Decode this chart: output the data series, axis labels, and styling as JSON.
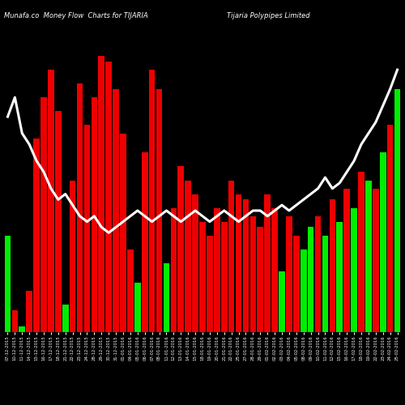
{
  "title_left": "Munafa.co  Money Flow  Charts for TIJARIA",
  "title_right": "Tijaria Polypipes Limited",
  "background_color": "#000000",
  "bar_color_pos": "#00ee00",
  "bar_color_neg": "#ee0000",
  "line_color": "#ffffff",
  "line_width": 2.2,
  "dates": [
    "07-12-2015",
    "10-12-2015",
    "11-12-2015",
    "14-12-2015",
    "15-12-2015",
    "16-12-2015",
    "17-12-2015",
    "18-12-2015",
    "21-12-2015",
    "22-12-2015",
    "23-12-2015",
    "24-12-2015",
    "28-12-2015",
    "29-12-2015",
    "30-12-2015",
    "31-12-2015",
    "01-01-2016",
    "04-01-2016",
    "05-01-2016",
    "06-01-2016",
    "07-01-2016",
    "08-01-2016",
    "11-01-2016",
    "12-01-2016",
    "13-01-2016",
    "14-01-2016",
    "15-01-2016",
    "18-01-2016",
    "19-01-2016",
    "20-01-2016",
    "21-01-2016",
    "22-01-2016",
    "25-01-2016",
    "27-01-2016",
    "28-01-2016",
    "29-01-2016",
    "01-02-2016",
    "02-02-2016",
    "03-02-2016",
    "04-02-2016",
    "05-02-2016",
    "08-02-2016",
    "09-02-2016",
    "10-02-2016",
    "11-02-2016",
    "12-02-2016",
    "15-02-2016",
    "16-02-2016",
    "17-02-2016",
    "18-02-2016",
    "19-02-2016",
    "22-02-2016",
    "23-02-2016",
    "24-02-2016",
    "25-02-2016"
  ],
  "values": [
    35,
    8,
    2,
    15,
    70,
    85,
    95,
    80,
    10,
    55,
    90,
    75,
    85,
    100,
    98,
    88,
    72,
    30,
    18,
    65,
    95,
    88,
    25,
    45,
    60,
    55,
    50,
    40,
    35,
    45,
    40,
    55,
    50,
    48,
    42,
    38,
    50,
    45,
    22,
    42,
    35,
    30,
    38,
    42,
    35,
    48,
    40,
    52,
    45,
    58,
    55,
    52,
    65,
    75,
    88
  ],
  "line_values": [
    78,
    85,
    72,
    68,
    62,
    58,
    52,
    48,
    50,
    46,
    42,
    40,
    42,
    38,
    36,
    38,
    40,
    42,
    44,
    42,
    40,
    42,
    44,
    42,
    40,
    42,
    44,
    42,
    40,
    42,
    44,
    42,
    40,
    42,
    44,
    44,
    42,
    44,
    46,
    44,
    46,
    48,
    50,
    52,
    56,
    52,
    54,
    58,
    62,
    68,
    72,
    76,
    82,
    88,
    95
  ],
  "bar_colors": [
    "pos",
    "neg",
    "pos",
    "neg",
    "neg",
    "neg",
    "neg",
    "neg",
    "pos",
    "neg",
    "neg",
    "neg",
    "neg",
    "neg",
    "neg",
    "neg",
    "neg",
    "neg",
    "pos",
    "neg",
    "neg",
    "neg",
    "pos",
    "neg",
    "neg",
    "neg",
    "neg",
    "neg",
    "neg",
    "neg",
    "neg",
    "neg",
    "neg",
    "neg",
    "neg",
    "neg",
    "neg",
    "neg",
    "pos",
    "neg",
    "neg",
    "pos",
    "pos",
    "neg",
    "pos",
    "neg",
    "pos",
    "neg",
    "pos",
    "neg",
    "pos",
    "neg",
    "pos",
    "neg",
    "pos"
  ],
  "ylim_max": 110,
  "figsize": [
    5.0,
    5.0
  ],
  "dpi": 100
}
